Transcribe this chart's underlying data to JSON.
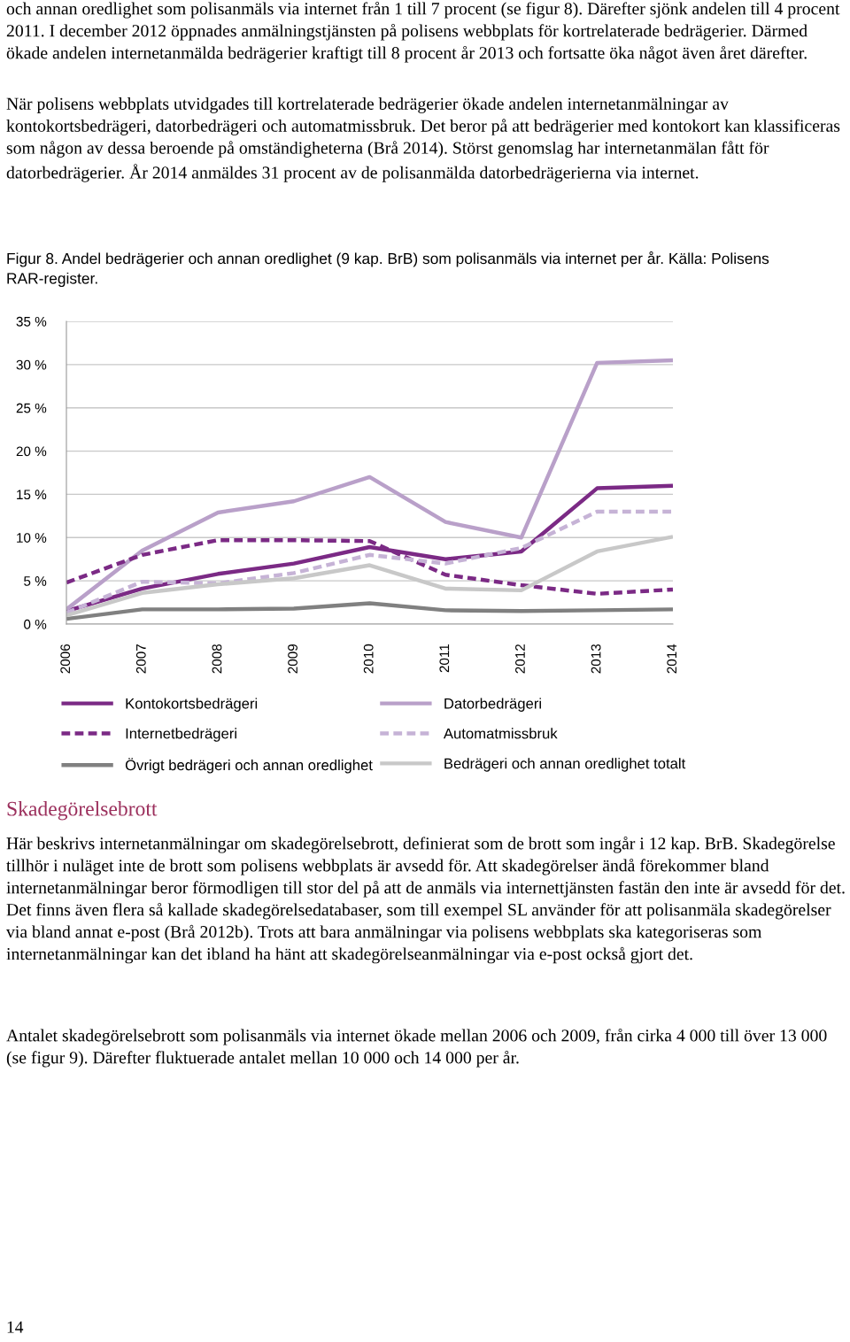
{
  "chart_data": {
    "type": "line",
    "title": "Figur 8. Andel bedrägerier och annan oredlighet (9 kap. BrB) som polisanmäls via internet per år. Källa: Polisens RAR-register.",
    "categories": [
      "2006",
      "2007",
      "2008",
      "2009",
      "2010",
      "2011",
      "2012",
      "2013",
      "2014"
    ],
    "series": [
      {
        "name": "Kontokortsbedrägeri",
        "color": "#7b2a85",
        "line_style": "solid",
        "values": [
          1.5,
          4.1,
          5.8,
          7.0,
          8.9,
          7.5,
          8.4,
          15.7,
          16.0
        ]
      },
      {
        "name": "Datorbedrägeri",
        "color": "#b9a0c9",
        "line_style": "solid",
        "values": [
          1.7,
          8.5,
          12.9,
          14.2,
          17.0,
          11.8,
          10.0,
          30.2,
          30.5
        ]
      },
      {
        "name": "Internetbedrägeri",
        "color": "#7b2a85",
        "line_style": "dashed",
        "values": [
          4.8,
          8.0,
          9.7,
          9.7,
          9.6,
          5.7,
          4.5,
          3.5,
          4.0
        ]
      },
      {
        "name": "Automatmissbruk",
        "color": "#c6b3d6",
        "line_style": "dashed",
        "values": [
          1.3,
          4.9,
          4.7,
          5.9,
          8.0,
          7.0,
          8.8,
          13.0,
          13.0
        ]
      },
      {
        "name": "Övrigt bedrägeri och annan oredlighet",
        "color": "#808080",
        "line_style": "solid",
        "values": [
          0.6,
          1.7,
          1.7,
          1.8,
          2.4,
          1.6,
          1.5,
          1.6,
          1.7
        ]
      },
      {
        "name": "Bedrägeri och annan oredlighet totalt",
        "color": "#c8c8c8",
        "line_style": "solid",
        "values": [
          1.0,
          3.6,
          4.6,
          5.3,
          6.8,
          4.1,
          3.9,
          8.4,
          10.1
        ]
      }
    ],
    "ylim": [
      0,
      35
    ],
    "yticks": [
      {
        "value": 0,
        "label": "0 %"
      },
      {
        "value": 5,
        "label": "5 %"
      },
      {
        "value": 10,
        "label": "10 %"
      },
      {
        "value": 15,
        "label": "15 %"
      },
      {
        "value": 20,
        "label": "20 %"
      },
      {
        "value": 25,
        "label": "25 %"
      },
      {
        "value": 30,
        "label": "30 %"
      },
      {
        "value": 35,
        "label": "35 %"
      }
    ],
    "grid": "y",
    "legend": "bottom",
    "marker": "none",
    "annotations": [
      "och annan oredlighet som polisanmäls via internet från 1 till 7 procent (se figur 8). Därefter sjönk andelen till 4 procent 2011. I december 2012 öppnades anmälningstjänsten på polisens webbplats för kortrelaterade bedrägerier. Därmed ökade andelen internetanmälda bedrägerier kraftigt till 8 procent år 2013 och fortsatte öka något även året därefter.",
      "När polisens webbplats utvidgades till kortrelaterade bedrägerier ökade andelen internetanmälningar av kontokortsbedrägeri, datorbedrägeri och automatmissbruk. Det beror på att bedrägerier med kontokort kan klassificeras som någon av dessa beroende på omständigheterna (Brå 2014). Störst genomslag har internetanmälan fått för datorbedrägerier. År 2014 anmäldes 31 procent av de polisanmälda datorbedrägerierna via internet.",
      "Skadegörelsebrott",
      "Här beskrivs internetanmälningar om skadegörelsebrott, definierat som de brott som ingår i 12 kap. BrB. Skadegörelse tillhör i nuläget inte de brott som polisens webbplats är avsedd för. Att skadegörelser ändå förekommer bland internetanmälningar beror förmodligen till stor del på att de anmäls via internettjänsten fastän den inte är avsedd för det. Det finns även flera så kallade skadegörelsedatabaser, som till exempel SL använder för att polisanmäla skadegörelser via bland annat e-post (Brå 2012b). Trots att bara anmälningar via polisens webbplats ska kategoriseras som internetanmälningar kan det ibland ha hänt att skadegörelseanmälningar via e-post också gjort det.",
      "Antalet skadegörelsebrott som polisanmäls via internet ökade mellan 2006 och 2009, från cirka 4 000 till över 13 000 (se figur 9). Därefter fluktuerade antalet mellan 10 000 och 14 000 per år.",
      "14"
    ]
  }
}
